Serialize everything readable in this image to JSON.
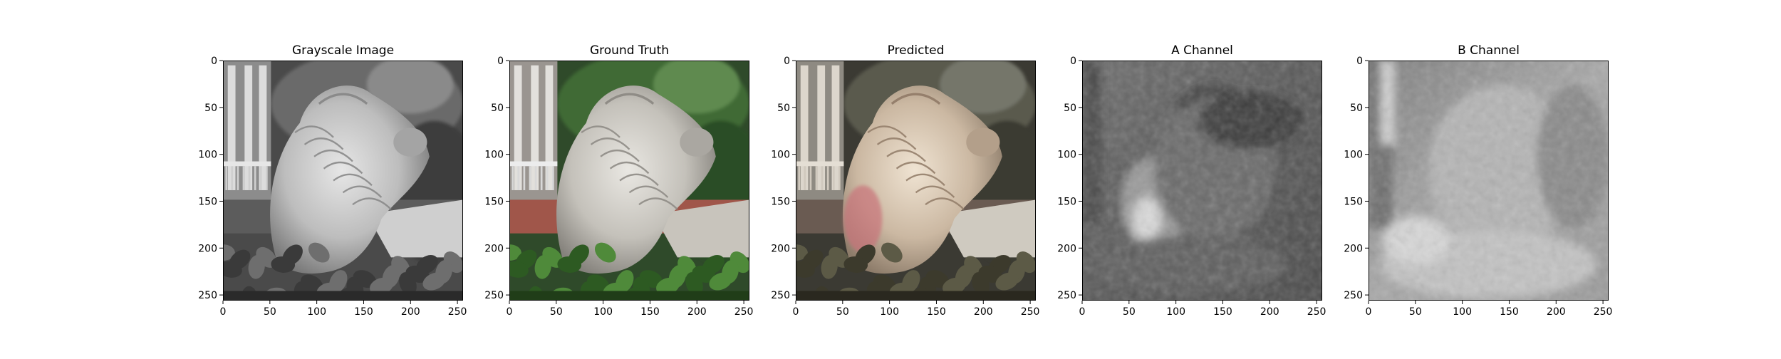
{
  "figure": {
    "panels": [
      {
        "title": "Grayscale Image",
        "kind": "grayscale",
        "x_ticks": [
          "0",
          "50",
          "100",
          "150",
          "200",
          "250"
        ],
        "y_ticks": [
          "0",
          "50",
          "100",
          "150",
          "200",
          "250"
        ]
      },
      {
        "title": "Ground Truth",
        "kind": "ground-truth",
        "x_ticks": [
          "0",
          "50",
          "100",
          "150",
          "200",
          "250"
        ],
        "y_ticks": [
          "0",
          "50",
          "100",
          "150",
          "200",
          "250"
        ]
      },
      {
        "title": "Predicted",
        "kind": "predicted",
        "x_ticks": [
          "0",
          "50",
          "100",
          "150",
          "200",
          "250"
        ],
        "y_ticks": [
          "0",
          "50",
          "100",
          "150",
          "200",
          "250"
        ]
      },
      {
        "title": "A Channel",
        "kind": "a-channel",
        "x_ticks": [
          "0",
          "50",
          "100",
          "150",
          "200",
          "250"
        ],
        "y_ticks": [
          "0",
          "50",
          "100",
          "150",
          "200",
          "250"
        ]
      },
      {
        "title": "B Channel",
        "kind": "b-channel",
        "x_ticks": [
          "0",
          "50",
          "100",
          "150",
          "200",
          "250"
        ],
        "y_ticks": [
          "0",
          "50",
          "100",
          "150",
          "200",
          "250"
        ]
      }
    ],
    "axis_range": [
      0,
      256
    ]
  }
}
